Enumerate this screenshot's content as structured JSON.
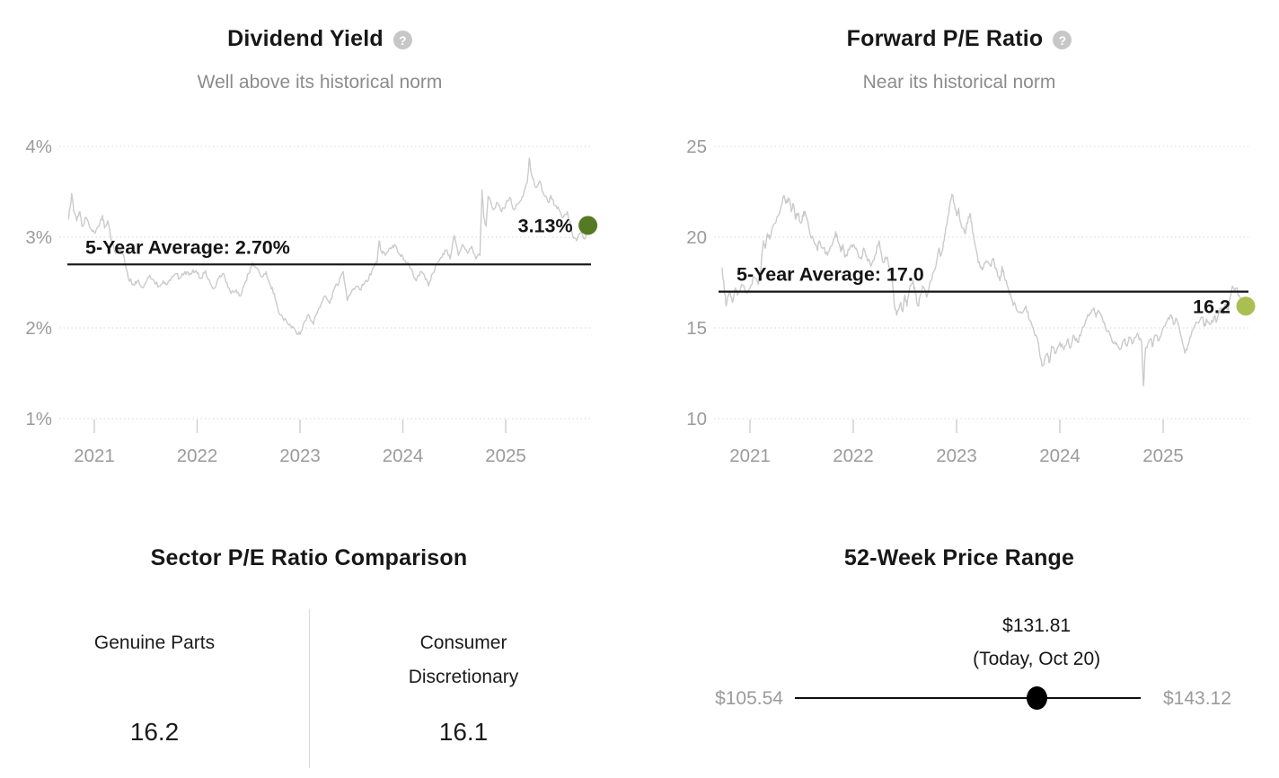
{
  "chart_data": [
    {
      "type": "line",
      "id": "dividend_yield",
      "title": "Dividend Yield",
      "subtitle": "Well above its historical norm",
      "help_glyph": "?",
      "line_color": "#cbcbcb",
      "noise": 0.025,
      "xlim": [
        2020.74,
        2025.83
      ],
      "ylim": [
        1,
        4
      ],
      "y_axis": {
        "ticks": [
          {
            "v": 4,
            "label": "4%"
          },
          {
            "v": 3,
            "label": "3%"
          },
          {
            "v": 2,
            "label": "2%"
          },
          {
            "v": 1,
            "label": "1%"
          }
        ]
      },
      "x_axis": {
        "ticks": [
          {
            "t": 2021,
            "label": "2021"
          },
          {
            "t": 2022,
            "label": "2022"
          },
          {
            "t": 2023,
            "label": "2023"
          },
          {
            "t": 2024,
            "label": "2024"
          },
          {
            "t": 2025,
            "label": "2025"
          }
        ]
      },
      "average": {
        "value": 2.7,
        "label": "5-Year Average: 2.70%"
      },
      "latest": {
        "t": 2025.8,
        "value": 3.13,
        "label": "3.13%",
        "color": "#567a24"
      },
      "series": [
        [
          2020.75,
          3.2
        ],
        [
          2020.78,
          3.48
        ],
        [
          2020.8,
          3.28
        ],
        [
          2020.83,
          3.18
        ],
        [
          2020.86,
          3.28
        ],
        [
          2020.88,
          3.12
        ],
        [
          2020.92,
          3.22
        ],
        [
          2020.96,
          3.1
        ],
        [
          2021.0,
          3.05
        ],
        [
          2021.04,
          3.12
        ],
        [
          2021.08,
          3.24
        ],
        [
          2021.1,
          3.1
        ],
        [
          2021.13,
          3.18
        ],
        [
          2021.17,
          2.95
        ],
        [
          2021.21,
          2.82
        ],
        [
          2021.25,
          2.88
        ],
        [
          2021.29,
          2.78
        ],
        [
          2021.33,
          2.55
        ],
        [
          2021.38,
          2.48
        ],
        [
          2021.42,
          2.52
        ],
        [
          2021.46,
          2.45
        ],
        [
          2021.5,
          2.5
        ],
        [
          2021.54,
          2.58
        ],
        [
          2021.58,
          2.52
        ],
        [
          2021.63,
          2.46
        ],
        [
          2021.67,
          2.52
        ],
        [
          2021.71,
          2.48
        ],
        [
          2021.75,
          2.55
        ],
        [
          2021.79,
          2.6
        ],
        [
          2021.83,
          2.55
        ],
        [
          2021.88,
          2.62
        ],
        [
          2021.92,
          2.58
        ],
        [
          2021.96,
          2.64
        ],
        [
          2022.0,
          2.6
        ],
        [
          2022.04,
          2.55
        ],
        [
          2022.08,
          2.63
        ],
        [
          2022.13,
          2.48
        ],
        [
          2022.17,
          2.44
        ],
        [
          2022.21,
          2.55
        ],
        [
          2022.25,
          2.6
        ],
        [
          2022.29,
          2.5
        ],
        [
          2022.33,
          2.38
        ],
        [
          2022.38,
          2.42
        ],
        [
          2022.42,
          2.35
        ],
        [
          2022.46,
          2.48
        ],
        [
          2022.5,
          2.6
        ],
        [
          2022.54,
          2.72
        ],
        [
          2022.58,
          2.66
        ],
        [
          2022.63,
          2.56
        ],
        [
          2022.67,
          2.62
        ],
        [
          2022.71,
          2.48
        ],
        [
          2022.75,
          2.38
        ],
        [
          2022.79,
          2.18
        ],
        [
          2022.83,
          2.12
        ],
        [
          2022.88,
          2.05
        ],
        [
          2022.92,
          2.0
        ],
        [
          2022.96,
          1.96
        ],
        [
          2023.0,
          1.93
        ],
        [
          2023.04,
          2.06
        ],
        [
          2023.08,
          2.15
        ],
        [
          2023.13,
          2.04
        ],
        [
          2023.17,
          2.18
        ],
        [
          2023.21,
          2.28
        ],
        [
          2023.25,
          2.35
        ],
        [
          2023.29,
          2.27
        ],
        [
          2023.33,
          2.42
        ],
        [
          2023.38,
          2.5
        ],
        [
          2023.42,
          2.62
        ],
        [
          2023.46,
          2.3
        ],
        [
          2023.5,
          2.4
        ],
        [
          2023.54,
          2.45
        ],
        [
          2023.58,
          2.42
        ],
        [
          2023.63,
          2.5
        ],
        [
          2023.67,
          2.55
        ],
        [
          2023.71,
          2.66
        ],
        [
          2023.75,
          2.72
        ],
        [
          2023.77,
          2.96
        ],
        [
          2023.79,
          2.85
        ],
        [
          2023.83,
          2.8
        ],
        [
          2023.88,
          2.88
        ],
        [
          2023.92,
          2.92
        ],
        [
          2023.96,
          2.82
        ],
        [
          2024.0,
          2.78
        ],
        [
          2024.04,
          2.72
        ],
        [
          2024.08,
          2.65
        ],
        [
          2024.13,
          2.52
        ],
        [
          2024.17,
          2.62
        ],
        [
          2024.21,
          2.58
        ],
        [
          2024.25,
          2.46
        ],
        [
          2024.29,
          2.6
        ],
        [
          2024.33,
          2.7
        ],
        [
          2024.38,
          2.78
        ],
        [
          2024.42,
          2.86
        ],
        [
          2024.46,
          2.76
        ],
        [
          2024.5,
          3.02
        ],
        [
          2024.54,
          2.8
        ],
        [
          2024.58,
          2.92
        ],
        [
          2024.63,
          2.82
        ],
        [
          2024.67,
          2.9
        ],
        [
          2024.71,
          2.76
        ],
        [
          2024.75,
          2.8
        ],
        [
          2024.77,
          3.52
        ],
        [
          2024.79,
          3.2
        ],
        [
          2024.81,
          3.12
        ],
        [
          2024.83,
          3.45
        ],
        [
          2024.88,
          3.3
        ],
        [
          2024.92,
          3.38
        ],
        [
          2024.96,
          3.28
        ],
        [
          2025.0,
          3.36
        ],
        [
          2025.04,
          3.44
        ],
        [
          2025.08,
          3.3
        ],
        [
          2025.13,
          3.38
        ],
        [
          2025.17,
          3.45
        ],
        [
          2025.21,
          3.6
        ],
        [
          2025.23,
          3.87
        ],
        [
          2025.25,
          3.7
        ],
        [
          2025.29,
          3.55
        ],
        [
          2025.33,
          3.62
        ],
        [
          2025.38,
          3.45
        ],
        [
          2025.42,
          3.38
        ],
        [
          2025.44,
          3.46
        ],
        [
          2025.48,
          3.35
        ],
        [
          2025.52,
          3.3
        ],
        [
          2025.56,
          3.22
        ],
        [
          2025.6,
          3.28
        ],
        [
          2025.65,
          3.02
        ],
        [
          2025.69,
          2.96
        ],
        [
          2025.73,
          3.05
        ],
        [
          2025.77,
          2.98
        ],
        [
          2025.8,
          3.13
        ]
      ]
    },
    {
      "type": "line",
      "id": "forward_pe_ratio",
      "title": "Forward P/E Ratio",
      "subtitle": "Near its historical norm",
      "help_glyph": "?",
      "line_color": "#cbcbcb",
      "noise": 0.16,
      "xlim": [
        2020.72,
        2025.83
      ],
      "ylim": [
        10,
        25
      ],
      "y_axis": {
        "ticks": [
          {
            "v": 25,
            "label": "25"
          },
          {
            "v": 20,
            "label": "20"
          },
          {
            "v": 15,
            "label": "15"
          },
          {
            "v": 10,
            "label": "10"
          }
        ]
      },
      "x_axis": {
        "ticks": [
          {
            "t": 2021,
            "label": "2021"
          },
          {
            "t": 2022,
            "label": "2022"
          },
          {
            "t": 2023,
            "label": "2023"
          },
          {
            "t": 2024,
            "label": "2024"
          },
          {
            "t": 2025,
            "label": "2025"
          }
        ]
      },
      "average": {
        "value": 17.0,
        "label": "5-Year Average: 17.0"
      },
      "latest": {
        "t": 2025.8,
        "value": 16.2,
        "label": "16.2",
        "color": "#a9bf52"
      },
      "series": [
        [
          2020.73,
          18.3
        ],
        [
          2020.75,
          17.2
        ],
        [
          2020.77,
          16.2
        ],
        [
          2020.8,
          17.0
        ],
        [
          2020.83,
          16.4
        ],
        [
          2020.86,
          17.2
        ],
        [
          2020.88,
          16.8
        ],
        [
          2020.92,
          17.4
        ],
        [
          2020.96,
          17.0
        ],
        [
          2021.0,
          17.2
        ],
        [
          2021.04,
          17.8
        ],
        [
          2021.08,
          17.4
        ],
        [
          2021.1,
          18.0
        ],
        [
          2021.13,
          19.8
        ],
        [
          2021.15,
          19.4
        ],
        [
          2021.17,
          20.2
        ],
        [
          2021.19,
          19.9
        ],
        [
          2021.21,
          20.4
        ],
        [
          2021.25,
          20.8
        ],
        [
          2021.29,
          21.4
        ],
        [
          2021.33,
          22.3
        ],
        [
          2021.35,
          21.9
        ],
        [
          2021.38,
          22.1
        ],
        [
          2021.4,
          21.4
        ],
        [
          2021.42,
          21.8
        ],
        [
          2021.44,
          21.0
        ],
        [
          2021.46,
          21.3
        ],
        [
          2021.5,
          20.8
        ],
        [
          2021.52,
          21.4
        ],
        [
          2021.54,
          21.2
        ],
        [
          2021.58,
          20.2
        ],
        [
          2021.63,
          19.6
        ],
        [
          2021.65,
          19.3
        ],
        [
          2021.67,
          19.8
        ],
        [
          2021.71,
          19.4
        ],
        [
          2021.75,
          19.0
        ],
        [
          2021.79,
          19.5
        ],
        [
          2021.83,
          20.3
        ],
        [
          2021.85,
          19.8
        ],
        [
          2021.88,
          19.2
        ],
        [
          2021.9,
          19.6
        ],
        [
          2021.92,
          18.9
        ],
        [
          2021.96,
          19.3
        ],
        [
          2022.0,
          19.6
        ],
        [
          2022.04,
          19.2
        ],
        [
          2022.08,
          18.8
        ],
        [
          2022.1,
          19.4
        ],
        [
          2022.13,
          18.9
        ],
        [
          2022.17,
          18.4
        ],
        [
          2022.21,
          19.0
        ],
        [
          2022.25,
          19.8
        ],
        [
          2022.27,
          19.2
        ],
        [
          2022.29,
          18.6
        ],
        [
          2022.33,
          18.9
        ],
        [
          2022.38,
          17.5
        ],
        [
          2022.4,
          16.2
        ],
        [
          2022.42,
          15.7
        ],
        [
          2022.46,
          16.4
        ],
        [
          2022.48,
          15.9
        ],
        [
          2022.5,
          16.8
        ],
        [
          2022.52,
          16.2
        ],
        [
          2022.54,
          17.0
        ],
        [
          2022.58,
          17.6
        ],
        [
          2022.6,
          16.9
        ],
        [
          2022.63,
          16.2
        ],
        [
          2022.65,
          16.8
        ],
        [
          2022.67,
          17.3
        ],
        [
          2022.71,
          16.7
        ],
        [
          2022.75,
          17.6
        ],
        [
          2022.79,
          18.2
        ],
        [
          2022.83,
          19.4
        ],
        [
          2022.85,
          19.0
        ],
        [
          2022.88,
          19.8
        ],
        [
          2022.9,
          20.6
        ],
        [
          2022.92,
          21.2
        ],
        [
          2022.94,
          22.0
        ],
        [
          2022.96,
          22.3
        ],
        [
          2022.98,
          21.8
        ],
        [
          2023.0,
          21.2
        ],
        [
          2023.02,
          21.6
        ],
        [
          2023.04,
          20.8
        ],
        [
          2023.08,
          20.2
        ],
        [
          2023.1,
          20.8
        ],
        [
          2023.13,
          21.3
        ],
        [
          2023.15,
          20.6
        ],
        [
          2023.17,
          19.8
        ],
        [
          2023.21,
          18.6
        ],
        [
          2023.25,
          18.2
        ],
        [
          2023.29,
          18.7
        ],
        [
          2023.33,
          18.4
        ],
        [
          2023.35,
          18.8
        ],
        [
          2023.38,
          18.3
        ],
        [
          2023.42,
          17.6
        ],
        [
          2023.44,
          18.4
        ],
        [
          2023.46,
          17.9
        ],
        [
          2023.5,
          17.2
        ],
        [
          2023.54,
          16.5
        ],
        [
          2023.58,
          16.0
        ],
        [
          2023.63,
          15.8
        ],
        [
          2023.67,
          16.2
        ],
        [
          2023.71,
          15.4
        ],
        [
          2023.75,
          14.8
        ],
        [
          2023.79,
          14.2
        ],
        [
          2023.81,
          13.4
        ],
        [
          2023.83,
          12.9
        ],
        [
          2023.88,
          13.6
        ],
        [
          2023.9,
          13.1
        ],
        [
          2023.92,
          14.0
        ],
        [
          2023.96,
          13.6
        ],
        [
          2024.0,
          14.2
        ],
        [
          2024.04,
          13.8
        ],
        [
          2024.08,
          14.4
        ],
        [
          2024.1,
          13.9
        ],
        [
          2024.13,
          14.6
        ],
        [
          2024.17,
          14.2
        ],
        [
          2024.21,
          14.8
        ],
        [
          2024.25,
          15.4
        ],
        [
          2024.29,
          15.8
        ],
        [
          2024.33,
          16.1
        ],
        [
          2024.35,
          15.6
        ],
        [
          2024.38,
          15.9
        ],
        [
          2024.42,
          15.3
        ],
        [
          2024.46,
          14.8
        ],
        [
          2024.5,
          14.4
        ],
        [
          2024.54,
          14.1
        ],
        [
          2024.58,
          13.8
        ],
        [
          2024.63,
          14.4
        ],
        [
          2024.65,
          14.0
        ],
        [
          2024.67,
          14.5
        ],
        [
          2024.71,
          14.2
        ],
        [
          2024.75,
          14.7
        ],
        [
          2024.79,
          14.3
        ],
        [
          2024.81,
          11.8
        ],
        [
          2024.83,
          13.9
        ],
        [
          2024.88,
          14.4
        ],
        [
          2024.9,
          14.0
        ],
        [
          2024.92,
          14.6
        ],
        [
          2024.96,
          14.3
        ],
        [
          2025.0,
          15.0
        ],
        [
          2025.04,
          15.4
        ],
        [
          2025.08,
          15.7
        ],
        [
          2025.1,
          15.2
        ],
        [
          2025.13,
          15.5
        ],
        [
          2025.17,
          14.6
        ],
        [
          2025.21,
          13.6
        ],
        [
          2025.25,
          14.2
        ],
        [
          2025.29,
          14.9
        ],
        [
          2025.33,
          15.3
        ],
        [
          2025.38,
          15.6
        ],
        [
          2025.4,
          15.1
        ],
        [
          2025.42,
          15.5
        ],
        [
          2025.46,
          15.2
        ],
        [
          2025.5,
          15.7
        ],
        [
          2025.52,
          15.4
        ],
        [
          2025.56,
          16.1
        ],
        [
          2025.58,
          15.8
        ],
        [
          2025.6,
          16.3
        ],
        [
          2025.63,
          16.0
        ],
        [
          2025.67,
          17.3
        ],
        [
          2025.69,
          17.0
        ],
        [
          2025.71,
          17.2
        ],
        [
          2025.73,
          16.8
        ],
        [
          2025.75,
          16.6
        ],
        [
          2025.8,
          16.2
        ]
      ]
    },
    {
      "type": "table",
      "id": "sector_pe_comparison",
      "title": "Sector P/E Ratio Comparison",
      "columns": [
        {
          "label": "Genuine Parts",
          "value": "16.2"
        },
        {
          "label": "Consumer Discretionary",
          "value": "16.1"
        }
      ]
    },
    {
      "type": "range",
      "id": "week52_price_range",
      "title": "52-Week Price Range",
      "low": 105.54,
      "high": 143.12,
      "current": 131.81,
      "low_label": "$105.54",
      "high_label": "$143.12",
      "current_price": "$131.81",
      "current_note": "(Today, Oct 20)"
    }
  ],
  "colors": {
    "dividend_dot": "#567a24",
    "pe_dot": "#a9bf52",
    "series_line": "#cbcbcb",
    "average_line": "#141414",
    "axis_text": "#9b9b9b",
    "grid": "#d8d8d8"
  }
}
